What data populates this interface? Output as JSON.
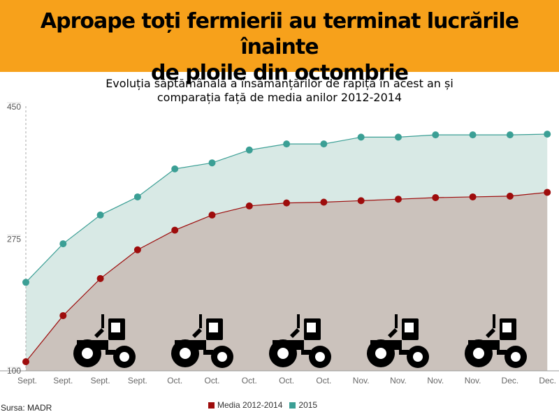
{
  "header": {
    "title_line1": "Aproape toți fermierii au terminat lucrările înainte",
    "title_line2": "de ploile din octombrie",
    "subtitle_line1": "Evoluția săptămânală a însămânțărilor de rapiță în acest an și",
    "subtitle_line2": "comparația față de media anilor 2012-2014"
  },
  "footer": {
    "source": "Sursa: MADR"
  },
  "colors": {
    "banner": "#f7a11b",
    "media": "#9e0c0c",
    "series2015": "#3b9f95",
    "area_media": "#cbc2bc",
    "area_2015": "#d8e9e5"
  },
  "icons": {
    "decoration": "tractor-icon",
    "decoration_count": 5
  },
  "chart_data": {
    "type": "area",
    "categories": [
      "Sept.",
      "Sept.",
      "Sept.",
      "Sept.",
      "Oct.",
      "Oct.",
      "Oct.",
      "Oct.",
      "Oct.",
      "Nov.",
      "Nov.",
      "Nov.",
      "Nov.",
      "Dec.",
      "Dec."
    ],
    "ylim": [
      100,
      450
    ],
    "yticks": [
      "100",
      "275",
      "450"
    ],
    "grid": false,
    "legend": "bottom",
    "series": [
      {
        "name": "Media 2012-2014",
        "color": "#9e0c0c",
        "values": [
          112,
          173,
          222,
          260,
          286,
          306,
          318,
          322,
          323,
          325,
          327,
          329,
          330,
          331,
          336
        ]
      },
      {
        "name": "2015",
        "color": "#3b9f95",
        "values": [
          217,
          268,
          306,
          330,
          367,
          375,
          392,
          400,
          400,
          409,
          409,
          412,
          412,
          412,
          413
        ]
      }
    ]
  }
}
